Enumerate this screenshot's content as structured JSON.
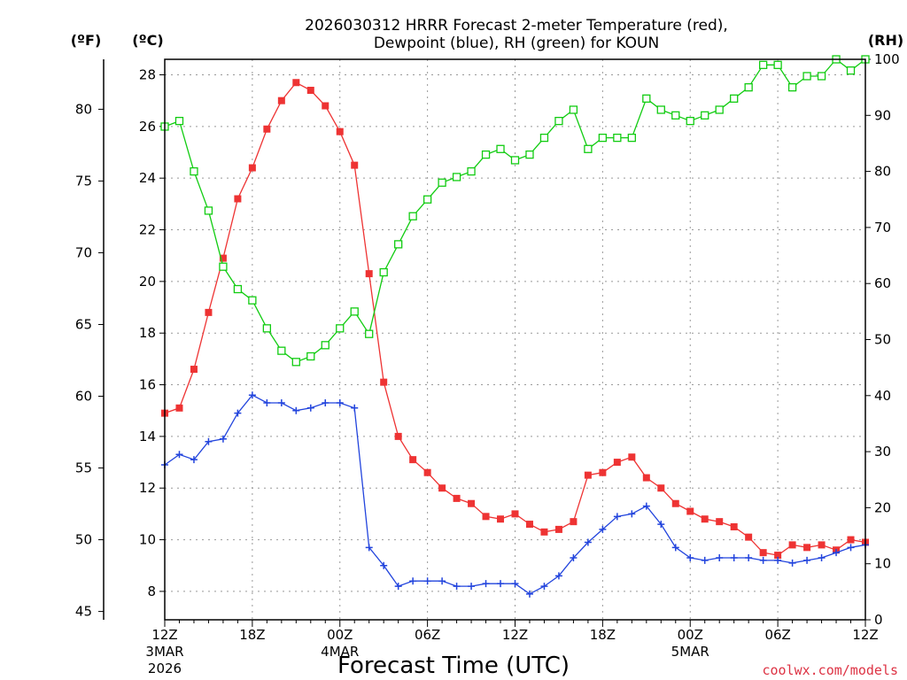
{
  "colors": {
    "temperature": "#ee3333",
    "dewpoint": "#2244dd",
    "rh": "#11cc11",
    "grid": "#999999",
    "credit": "#dd3344"
  },
  "chart_data": {
    "type": "line",
    "title_line1": "2026030312 HRRR Forecast 2-meter Temperature (red),",
    "title_line2": "Dewpoint (blue), RH (green) for KOUN",
    "xlabel": "Forecast Time (UTC)",
    "unit_f": "(ºF)",
    "unit_c": "(ºC)",
    "unit_rh": "(RH)",
    "credit": "coolwx.com/models",
    "xlim": [
      0,
      48
    ],
    "ylim_c": [
      6.9,
      28.6
    ],
    "ylim_rh": [
      0,
      100
    ],
    "ylim_f": [
      45,
      83.5
    ],
    "c_ticks": [
      8,
      10,
      12,
      14,
      16,
      18,
      20,
      22,
      24,
      26,
      28
    ],
    "f_ticks": [
      45,
      50,
      55,
      60,
      65,
      70,
      75,
      80
    ],
    "rh_ticks": [
      0,
      10,
      20,
      30,
      40,
      50,
      60,
      70,
      80,
      90,
      100
    ],
    "x_ticks": [
      {
        "x": 0,
        "label": "12Z",
        "sub1": "3MAR",
        "sub2": "2026"
      },
      {
        "x": 6,
        "label": "18Z",
        "sub1": "",
        "sub2": ""
      },
      {
        "x": 12,
        "label": "00Z",
        "sub1": "4MAR",
        "sub2": ""
      },
      {
        "x": 18,
        "label": "06Z",
        "sub1": "",
        "sub2": ""
      },
      {
        "x": 24,
        "label": "12Z",
        "sub1": "",
        "sub2": ""
      },
      {
        "x": 30,
        "label": "18Z",
        "sub1": "",
        "sub2": ""
      },
      {
        "x": 36,
        "label": "00Z",
        "sub1": "5MAR",
        "sub2": ""
      },
      {
        "x": 42,
        "label": "06Z",
        "sub1": "",
        "sub2": ""
      },
      {
        "x": 48,
        "label": "12Z",
        "sub1": "",
        "sub2": ""
      }
    ],
    "series": [
      {
        "name": "Temperature",
        "axis": "c",
        "marker": "filled-square",
        "values": [
          14.9,
          15.1,
          16.6,
          18.8,
          20.9,
          23.2,
          24.4,
          25.9,
          27.0,
          27.7,
          27.4,
          26.8,
          25.8,
          24.5,
          20.3,
          16.1,
          14.0,
          13.1,
          12.6,
          12.0,
          11.6,
          11.4,
          10.9,
          10.8,
          11.0,
          10.6,
          10.3,
          10.4,
          10.7,
          12.5,
          12.6,
          13.0,
          13.2,
          12.4,
          12.0,
          11.4,
          11.1,
          10.8,
          10.7,
          10.5,
          10.1,
          9.5,
          9.4,
          9.8,
          9.7,
          9.8,
          9.6,
          10.0,
          9.9
        ]
      },
      {
        "name": "Dewpoint",
        "axis": "c",
        "marker": "plus",
        "values": [
          12.9,
          13.3,
          13.1,
          13.8,
          13.9,
          14.9,
          15.6,
          15.3,
          15.3,
          15.0,
          15.1,
          15.3,
          15.3,
          15.1,
          9.7,
          9.0,
          8.2,
          8.4,
          8.4,
          8.4,
          8.2,
          8.2,
          8.3,
          8.3,
          8.3,
          7.9,
          8.2,
          8.6,
          9.3,
          9.9,
          10.4,
          10.9,
          11.0,
          11.3,
          10.6,
          9.7,
          9.3,
          9.2,
          9.3,
          9.3,
          9.3,
          9.2,
          9.2,
          9.1,
          9.2,
          9.3,
          9.5,
          9.7,
          9.8
        ]
      },
      {
        "name": "RH",
        "axis": "rh",
        "marker": "open-square",
        "values": [
          88,
          89,
          80,
          73,
          63,
          59,
          57,
          52,
          48,
          46,
          47,
          49,
          52,
          55,
          51,
          62,
          67,
          72,
          75,
          78,
          79,
          80,
          83,
          84,
          82,
          83,
          86,
          89,
          91,
          84,
          86,
          86,
          86,
          93,
          91,
          90,
          89,
          90,
          91,
          93,
          95,
          99,
          99,
          95,
          97,
          97,
          100,
          98,
          100
        ]
      }
    ]
  }
}
